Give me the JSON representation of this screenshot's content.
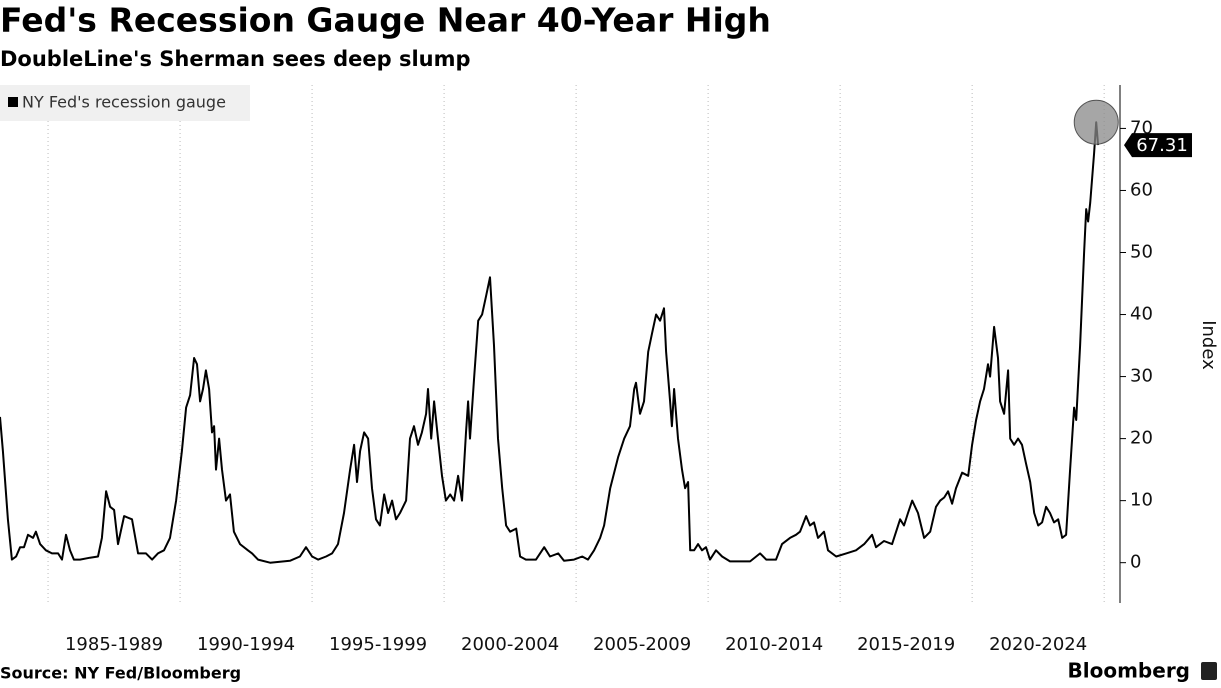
{
  "chart_data": {
    "type": "line",
    "title": "Fed's Recession Gauge Near 40-Year High",
    "subtitle": "DoubleLine's Sherman sees deep slump",
    "ylabel": "Index",
    "source": "Source: NY Fed/Bloomberg",
    "brand": "Bloomberg",
    "annotation": "67.31",
    "x": [
      1983.18,
      1983.29,
      1983.48,
      1983.63,
      1983.79,
      1983.94,
      1984.09,
      1984.24,
      1984.43,
      1984.54,
      1984.7,
      1984.92,
      1985.15,
      1985.38,
      1985.53,
      1985.68,
      1985.83,
      1985.98,
      1986.21,
      1986.59,
      1986.89,
      1987.04,
      1987.2,
      1987.35,
      1987.5,
      1987.65,
      1987.88,
      1988.18,
      1988.41,
      1988.71,
      1988.94,
      1989.16,
      1989.39,
      1989.62,
      1989.85,
      1990.07,
      1990.23,
      1990.38,
      1990.53,
      1990.64,
      1990.76,
      1990.87,
      1990.98,
      1991.1,
      1991.21,
      1991.29,
      1991.36,
      1991.48,
      1991.59,
      1991.74,
      1991.89,
      1992.04,
      1992.27,
      1992.57,
      1992.73,
      1992.95,
      1993.41,
      1994.16,
      1994.54,
      1994.77,
      1995.0,
      1995.23,
      1995.53,
      1995.76,
      1995.98,
      1996.21,
      1996.44,
      1996.59,
      1996.7,
      1996.82,
      1996.97,
      1997.12,
      1997.27,
      1997.42,
      1997.57,
      1997.73,
      1997.88,
      1998.03,
      1998.18,
      1998.33,
      1998.56,
      1998.71,
      1998.86,
      1999.01,
      1999.16,
      1999.32,
      1999.39,
      1999.51,
      1999.62,
      1999.77,
      1999.92,
      2000.07,
      2000.23,
      2000.38,
      2000.53,
      2000.68,
      2000.83,
      2000.91,
      2000.98,
      2001.14,
      2001.29,
      2001.44,
      2001.59,
      2001.74,
      2001.89,
      2002.04,
      2002.2,
      2002.35,
      2002.5,
      2002.73,
      2002.88,
      2003.1,
      2003.48,
      2003.79,
      2004.01,
      2004.32,
      2004.54,
      2004.92,
      2005.23,
      2005.45,
      2005.68,
      2005.91,
      2006.06,
      2006.29,
      2006.59,
      2006.82,
      2007.04,
      2007.2,
      2007.27,
      2007.42,
      2007.57,
      2007.73,
      2007.88,
      2008.03,
      2008.18,
      2008.33,
      2008.41,
      2008.56,
      2008.63,
      2008.71,
      2008.86,
      2009.01,
      2009.13,
      2009.24,
      2009.32,
      2009.47,
      2009.62,
      2009.77,
      2009.92,
      2010.07,
      2010.3,
      2010.53,
      2010.83,
      2011.59,
      2011.97,
      2012.2,
      2012.57,
      2012.8,
      2013.1,
      2013.33,
      2013.48,
      2013.71,
      2013.86,
      2014.01,
      2014.16,
      2014.39,
      2014.54,
      2014.85,
      2015.23,
      2015.6,
      2015.91,
      2016.21,
      2016.36,
      2016.66,
      2016.97,
      2017.27,
      2017.42,
      2017.57,
      2017.73,
      2017.95,
      2018.18,
      2018.41,
      2018.63,
      2018.79,
      2018.94,
      2019.09,
      2019.24,
      2019.39,
      2019.62,
      2019.85,
      2020.0,
      2020.15,
      2020.3,
      2020.45,
      2020.6,
      2020.68,
      2020.83,
      2020.98,
      2021.06,
      2021.21,
      2021.36,
      2021.44,
      2021.59,
      2021.74,
      2021.89,
      2022.04,
      2022.2,
      2022.35,
      2022.5,
      2022.65,
      2022.8,
      2022.95,
      2023.1,
      2023.26,
      2023.41,
      2023.56,
      2023.71,
      2023.86,
      2023.94,
      2024.09,
      2024.24,
      2024.32,
      2024.39,
      2024.47,
      2024.62,
      2024.7,
      2024.77
    ],
    "series": [
      {
        "name": "NY Fed's recession gauge",
        "color": "#000000",
        "values": [
          23.5,
          18,
          7,
          0.5,
          1,
          2.5,
          2.5,
          4.5,
          4,
          5,
          3,
          2,
          1.5,
          1.5,
          0.5,
          4.5,
          2,
          0.5,
          0.5,
          0.8,
          1,
          4,
          11.5,
          9,
          8.5,
          3,
          7.5,
          7,
          1.5,
          1.5,
          0.5,
          1.5,
          2,
          4,
          10,
          18,
          25,
          27,
          33,
          32,
          26,
          28,
          31,
          28,
          21,
          22,
          15,
          20,
          15,
          10,
          11,
          5,
          3,
          2,
          1.5,
          0.5,
          0,
          0.3,
          1,
          2.5,
          1,
          0.5,
          1,
          1.5,
          3,
          8,
          15,
          19,
          13,
          18,
          21,
          20,
          12,
          7,
          6,
          11,
          8,
          10,
          7,
          8,
          10,
          20,
          22,
          19,
          21,
          24,
          28,
          20,
          26,
          20,
          14,
          10,
          11,
          10,
          14,
          10,
          21,
          26,
          20,
          30,
          39,
          40,
          43,
          46,
          35,
          20,
          12,
          6,
          5,
          5.5,
          1,
          0.5,
          0.5,
          2.5,
          1,
          1.5,
          0.3,
          0.5,
          1,
          0.5,
          2,
          4,
          6,
          12,
          17,
          20,
          22,
          28,
          29,
          24,
          26,
          34,
          37,
          40,
          39,
          41,
          34,
          26,
          22,
          28,
          20,
          15,
          12,
          13,
          2,
          2,
          3,
          2,
          2.5,
          0.5,
          2,
          1,
          0.2,
          0.2,
          1.5,
          0.5,
          0.5,
          3,
          4,
          4.5,
          5,
          7.5,
          6,
          6.5,
          4,
          5,
          2,
          1,
          1.5,
          2,
          3,
          4.5,
          2.5,
          3.5,
          3,
          7,
          6,
          8,
          10,
          8,
          4,
          5,
          9,
          10,
          10.5,
          11.5,
          9.5,
          12,
          14.5,
          14,
          19,
          23,
          26,
          28,
          32,
          30,
          38,
          33,
          26,
          24,
          31,
          20,
          19,
          20,
          19,
          16,
          13,
          8,
          6,
          6.5,
          9,
          8,
          6.5,
          7,
          4,
          4.5,
          15,
          25,
          23,
          35,
          50,
          57,
          55,
          58,
          66,
          71,
          67.31
        ]
      }
    ],
    "xlim": [
      1983.18,
      2025.6
    ],
    "xticks": [
      {
        "value": 1985,
        "label": "1985-1989"
      },
      {
        "value": 1990,
        "label": "1990-1994"
      },
      {
        "value": 1995,
        "label": "1995-1999"
      },
      {
        "value": 2000,
        "label": "2000-2004"
      },
      {
        "value": 2005,
        "label": "2005-2009"
      },
      {
        "value": 2010,
        "label": "2010-2014"
      },
      {
        "value": 2015,
        "label": "2015-2019"
      },
      {
        "value": 2020,
        "label": "2020-2024"
      },
      {
        "value": 2025,
        "label": ""
      }
    ],
    "ylim": [
      -6.5,
      77
    ],
    "yticks": [
      0,
      10,
      20,
      30,
      40,
      50,
      60,
      70
    ],
    "grid": true,
    "legend": "top-left"
  }
}
